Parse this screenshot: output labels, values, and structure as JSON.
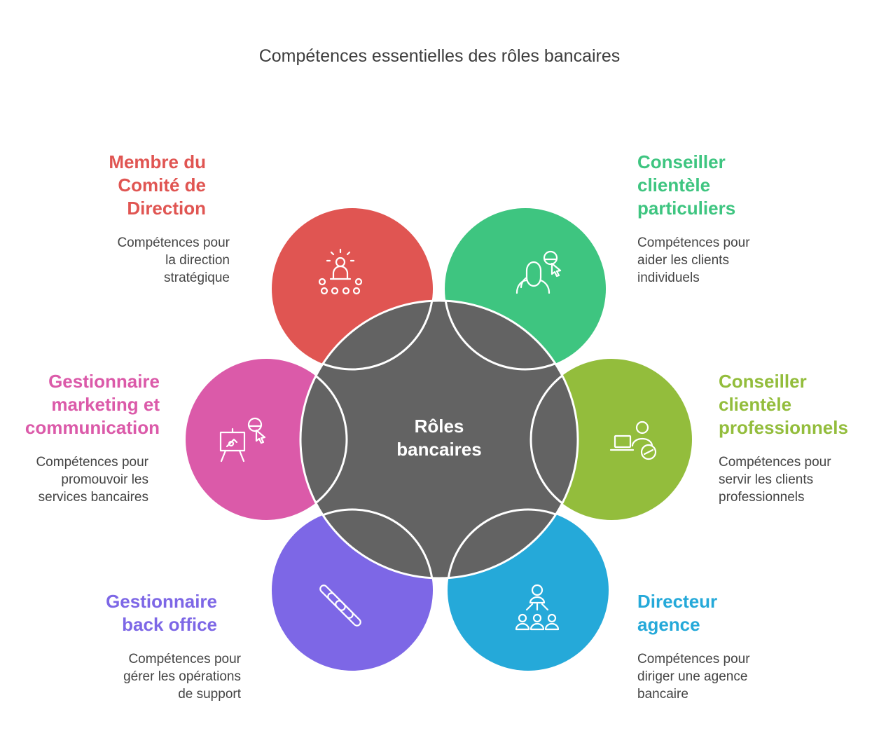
{
  "title": "Compétences essentielles des rôles bancaires",
  "center": {
    "line1": "Rôles",
    "line2": "bancaires"
  },
  "roles": [
    {
      "title_lines": [
        "Membre du",
        "Comité de",
        "Direction"
      ],
      "desc_lines": [
        "Compétences pour",
        "la direction",
        "stratégique"
      ],
      "color": "#e05552",
      "icon": "presenter-audience-icon"
    },
    {
      "title_lines": [
        "Conseiller",
        "clientèle",
        "particuliers"
      ],
      "desc_lines": [
        "Compétences pour",
        "aider les clients",
        "individuels"
      ],
      "color": "#3ec580",
      "icon": "customer-support-icon"
    },
    {
      "title_lines": [
        "Gestionnaire",
        "marketing et",
        "communication"
      ],
      "desc_lines": [
        "Compétences pour",
        "promouvoir les",
        "services bancaires"
      ],
      "color": "#db5aa9",
      "icon": "presentation-easel-icon"
    },
    {
      "title_lines": [
        "Conseiller",
        "clientèle",
        "professionnels"
      ],
      "desc_lines": [
        "Compétences pour",
        "servir les clients",
        "professionnels"
      ],
      "color": "#93bd3c",
      "icon": "laptop-user-icon"
    },
    {
      "title_lines": [
        "Gestionnaire",
        "back office"
      ],
      "desc_lines": [
        "Compétences pour",
        "gérer les opérations",
        "de support"
      ],
      "color": "#7d67e6",
      "icon": "tools-icon"
    },
    {
      "title_lines": [
        "Directeur",
        "agence"
      ],
      "desc_lines": [
        "Compétences pour",
        "diriger une agence",
        "bancaire"
      ],
      "color": "#25a9d9",
      "icon": "team-leader-icon"
    }
  ]
}
